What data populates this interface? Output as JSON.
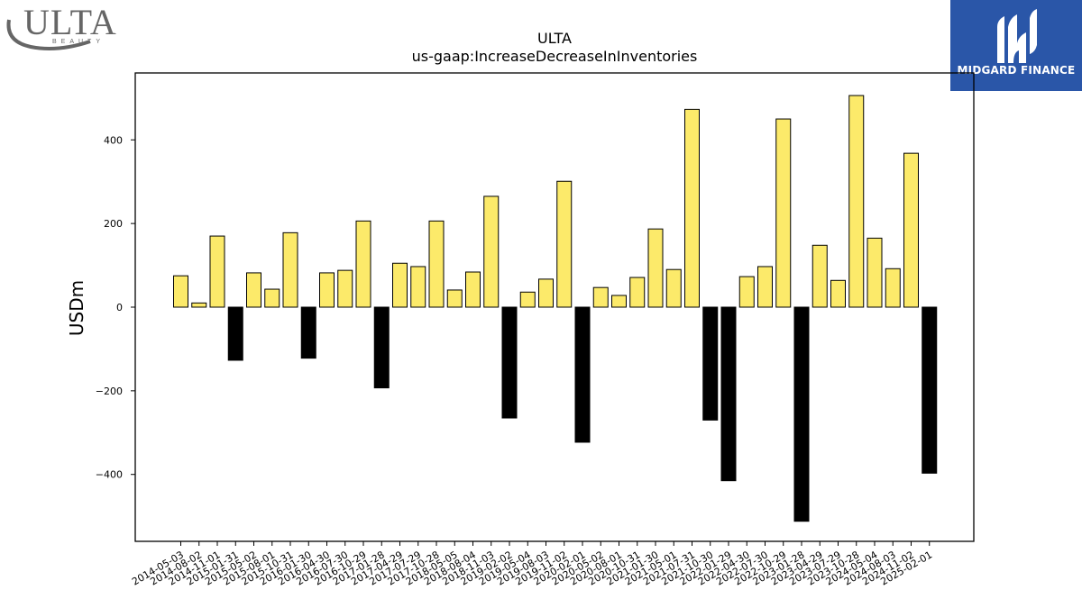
{
  "logos": {
    "ulta": {
      "name": "ULTA",
      "sub": "BEAUTY"
    },
    "midgard": {
      "name": "MIDGARD FINANCE"
    }
  },
  "colors": {
    "positive_bar": "#fcea6a",
    "negative_bar": "#000000",
    "brand_blue": "#2a56a8"
  },
  "chart_data": {
    "type": "bar",
    "title": "ULTA",
    "subtitle": "us-gaap:IncreaseDecreaseInInventories",
    "xlabel": "",
    "ylabel": "USDm",
    "ylim": [
      -560,
      560
    ],
    "yticks": [
      -400,
      -200,
      0,
      200,
      400
    ],
    "grid": false,
    "categories": [
      "2014-05-03",
      "2014-08-02",
      "2014-11-01",
      "2015-01-31",
      "2015-05-02",
      "2015-08-01",
      "2015-10-31",
      "2016-01-30",
      "2016-04-30",
      "2016-07-30",
      "2016-10-29",
      "2017-01-28",
      "2017-04-29",
      "2017-07-29",
      "2017-10-28",
      "2018-05-05",
      "2018-08-04",
      "2018-11-03",
      "2019-02-02",
      "2019-05-04",
      "2019-08-03",
      "2019-11-02",
      "2020-02-01",
      "2020-05-02",
      "2020-08-01",
      "2020-10-31",
      "2021-01-30",
      "2021-05-01",
      "2021-07-31",
      "2021-10-30",
      "2022-01-29",
      "2022-04-30",
      "2022-07-30",
      "2022-10-29",
      "2023-01-28",
      "2023-04-29",
      "2023-07-29",
      "2023-10-28",
      "2024-05-04",
      "2024-08-03",
      "2024-11-02",
      "2025-02-01"
    ],
    "values": [
      75,
      10,
      170,
      -127,
      82,
      43,
      178,
      -122,
      82,
      88,
      206,
      -193,
      105,
      97,
      206,
      41,
      84,
      265,
      -265,
      36,
      67,
      301,
      -323,
      47,
      28,
      71,
      187,
      90,
      473,
      -270,
      -415,
      73,
      97,
      450,
      -512,
      148,
      64,
      506,
      165,
      92,
      368,
      -397
    ]
  }
}
